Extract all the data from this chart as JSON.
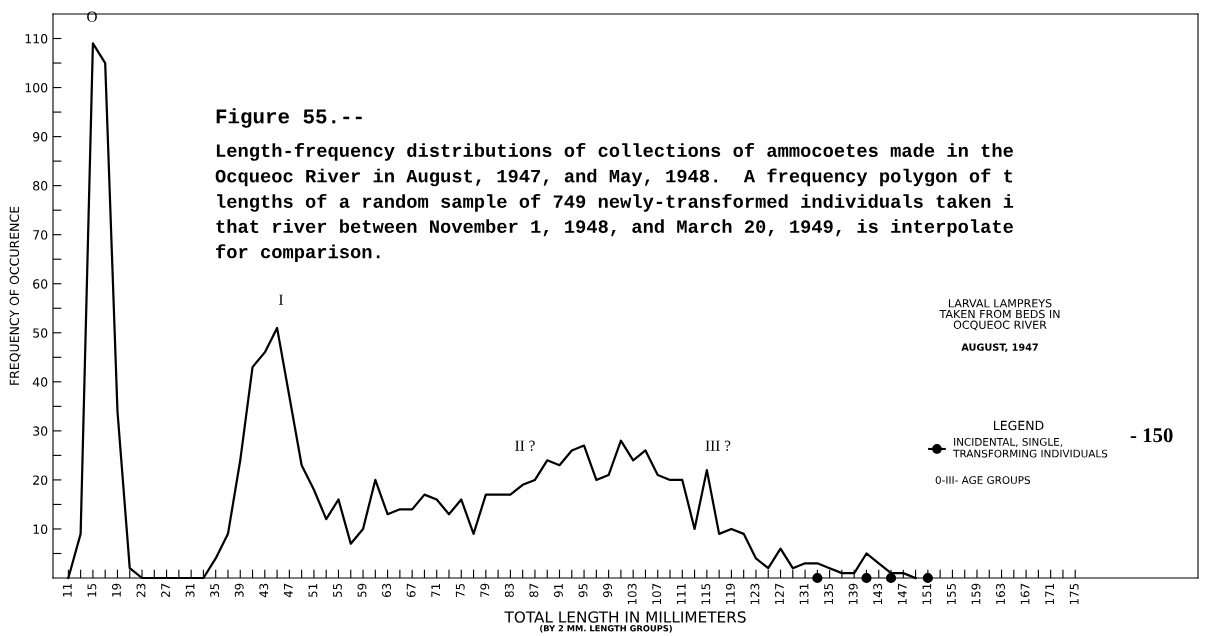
{
  "chart_data": {
    "type": "line",
    "xlabel": "TOTAL LENGTH IN MILLIMETERS",
    "ylabel": "FREQUENCY OF OCCURENCE",
    "legend_title": "LEGEND",
    "legend": "center right",
    "grid": false,
    "xlim": [
      8.5,
      195
    ],
    "ylim": [
      0,
      115
    ],
    "xticks": [
      11,
      {
        "value": 13,
        "label": null
      },
      15,
      {
        "value": 17,
        "label": null
      },
      19,
      {
        "value": 21,
        "label": null
      },
      23,
      {
        "value": 25,
        "label": null
      },
      27,
      {
        "value": 29,
        "label": null
      },
      31,
      {
        "value": 33,
        "label": null
      },
      35,
      {
        "value": 37,
        "label": null
      },
      39,
      {
        "value": 41,
        "label": null
      },
      43,
      {
        "value": 45,
        "label": null
      },
      47,
      {
        "value": 49,
        "label": null
      },
      51,
      {
        "value": 53,
        "label": null
      },
      55,
      {
        "value": 57,
        "label": null
      },
      59,
      {
        "value": 61,
        "label": null
      },
      63,
      {
        "value": 65,
        "label": null
      },
      67,
      {
        "value": 69,
        "label": null
      },
      71,
      {
        "value": 73,
        "label": null
      },
      75,
      {
        "value": 77,
        "label": null
      },
      79,
      {
        "value": 81,
        "label": null
      },
      83,
      {
        "value": 85,
        "label": null
      },
      87,
      {
        "value": 89,
        "label": null
      },
      91,
      {
        "value": 93,
        "label": null
      },
      95,
      {
        "value": 97,
        "label": null
      },
      99,
      {
        "value": 101,
        "label": null
      },
      103,
      {
        "value": 105,
        "label": null
      },
      107,
      {
        "value": 109,
        "label": null
      },
      111,
      {
        "value": 113,
        "label": null
      },
      115,
      {
        "value": 117,
        "label": null
      },
      119,
      {
        "value": 121,
        "label": null
      },
      123,
      {
        "value": 125,
        "label": null
      },
      127,
      {
        "value": 129,
        "label": null
      },
      131,
      {
        "value": 133,
        "label": null
      },
      135,
      {
        "value": 137,
        "label": null
      },
      139,
      {
        "value": 141,
        "label": null
      },
      143,
      {
        "value": 145,
        "label": null
      },
      147,
      {
        "value": 149,
        "label": null
      },
      151,
      {
        "value": 153,
        "label": null
      },
      155,
      {
        "value": 157,
        "label": null
      },
      159,
      {
        "value": 161,
        "label": null
      },
      163,
      {
        "value": 165,
        "label": null
      },
      167,
      {
        "value": 169,
        "label": null
      },
      171,
      {
        "value": 173,
        "label": null
      },
      175
    ],
    "yticks": [
      {
        "value": 5,
        "label": null
      },
      10,
      {
        "value": 15,
        "label": null
      },
      20,
      {
        "value": 25,
        "label": null
      },
      30,
      {
        "value": 35,
        "label": null
      },
      40,
      {
        "value": 45,
        "label": null
      },
      50,
      {
        "value": 55,
        "label": null
      },
      60,
      {
        "value": 65,
        "label": null
      },
      70,
      {
        "value": 75,
        "label": null
      },
      80,
      {
        "value": 85,
        "label": null
      },
      90,
      {
        "value": 95,
        "label": null
      },
      100,
      {
        "value": 105,
        "label": null
      },
      110
    ],
    "series": [
      {
        "color": "#000000",
        "marker": "none",
        "line_style": "solid",
        "x": [
          11,
          13,
          15,
          17,
          19,
          21,
          23,
          25,
          27,
          29,
          31,
          33,
          35,
          37,
          39,
          41,
          43,
          45,
          47,
          49,
          51,
          53,
          55,
          57,
          59,
          61,
          63,
          65,
          67,
          69,
          71,
          73,
          75,
          77,
          79,
          81,
          83,
          85,
          87,
          89,
          91,
          93,
          95,
          97,
          99,
          101,
          103,
          105,
          107,
          109,
          111,
          113,
          115,
          117,
          119,
          121,
          123,
          125,
          127,
          129,
          131,
          133,
          135,
          137,
          139,
          141,
          143,
          145,
          147,
          149
        ],
        "values": [
          0,
          9,
          109,
          105,
          34,
          2,
          0,
          0,
          0,
          0,
          0,
          0,
          4,
          9,
          24,
          43,
          46,
          51,
          37,
          23,
          18,
          12,
          16,
          7,
          10,
          20,
          13,
          14,
          14,
          17,
          16,
          13,
          16,
          9,
          17,
          17,
          17,
          19,
          20,
          24,
          23,
          26,
          27,
          20,
          21,
          28,
          24,
          26,
          21,
          20,
          20,
          10,
          22,
          9,
          10,
          9,
          4,
          2,
          6,
          2,
          3,
          3,
          2,
          1,
          1,
          5,
          3,
          1,
          1,
          0
        ]
      },
      {
        "type": "scatter",
        "name": "INCIDENTAL, SINGLE,\nTRANSFORMING INDIVIDUALS",
        "color": "#000000",
        "marker": "circle",
        "x": [
          133,
          141,
          145,
          151
        ],
        "values": [
          0,
          0,
          0,
          0
        ]
      }
    ],
    "annotations": [
      "O",
      "I",
      "II ?",
      "III ?",
      "Figure 55.--",
      "Length-frequency distributions of collections of ammocoetes made in the\nOcqueoc River in August, 1947, and May, 1948.  A frequency polygon of t\nlengths of a random sample of 749 newly-transformed individuals taken i\nthat river between November 1, 1948, and March 20, 1949, is interpolate\nfor comparison.",
      "LARVAL LAMPREYS\nTAKEN FROM BEDS IN\nOCQUEOC RIVER",
      "AUGUST, 1947",
      "0-III- AGE GROUPS",
      "- 150",
      "(BY 2 MM. LENGTH GROUPS)"
    ]
  }
}
